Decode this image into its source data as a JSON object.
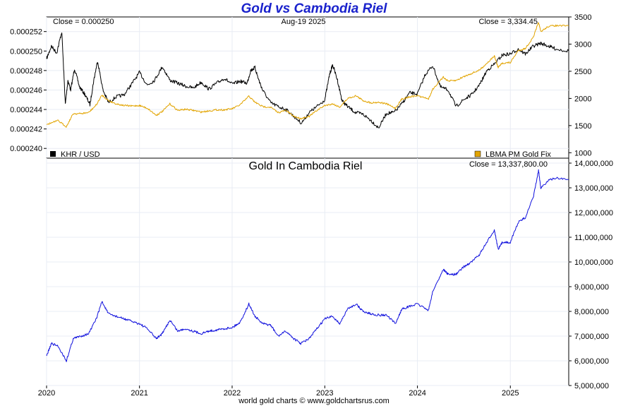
{
  "title": "Gold vs Cambodia Riel",
  "footer": "world gold charts © www.goldchartsrus.com",
  "colors": {
    "title": "#1a22cc",
    "khr": "#000000",
    "gold": "#e2a400",
    "gold_in_khr": "#1010dd",
    "grid": "#e8ecf4"
  },
  "x_axis": {
    "ticks": [
      "2020",
      "2021",
      "2022",
      "2023",
      "2024",
      "2025"
    ]
  },
  "chart_data": [
    {
      "type": "line",
      "title": "",
      "date_label": "Aug-19  2025",
      "xlim": [
        "2020-01-01",
        "2025-08-19"
      ],
      "left_axis": {
        "ylim": [
          0.000239,
          0.0002535
        ],
        "ticks": [
          "0.000252",
          "0.000250",
          "0.000248",
          "0.000246",
          "0.000244",
          "0.000242",
          "0.000240"
        ]
      },
      "right_axis": {
        "ylim": [
          900,
          3500
        ],
        "ticks": [
          "3500",
          "3000",
          "2500",
          "2000",
          "1500",
          "1000"
        ]
      },
      "close_left": "Close = 0.000250",
      "close_right": "Close = 3,334.45",
      "grid": true,
      "legend": {
        "placement": "bottom",
        "left_label": "KHR / USD",
        "right_label": "LBMA PM Gold Fix"
      },
      "series": [
        {
          "name": "KHR / USD",
          "axis": "left",
          "color": "#000000",
          "x": [
            "2020-01-01",
            "2020-01-20",
            "2020-02-10",
            "2020-03-01",
            "2020-03-15",
            "2020-03-25",
            "2020-04-05",
            "2020-04-20",
            "2020-05-10",
            "2020-06-01",
            "2020-06-20",
            "2020-07-05",
            "2020-07-20",
            "2020-08-10",
            "2020-09-01",
            "2020-10-01",
            "2020-11-01",
            "2020-12-01",
            "2021-01-01",
            "2021-02-01",
            "2021-03-01",
            "2021-04-01",
            "2021-05-01",
            "2021-06-01",
            "2021-07-01",
            "2021-08-01",
            "2021-09-01",
            "2021-10-01",
            "2021-11-01",
            "2021-12-01",
            "2022-01-01",
            "2022-02-01",
            "2022-03-01",
            "2022-03-15",
            "2022-04-01",
            "2022-04-15",
            "2022-05-01",
            "2022-06-01",
            "2022-07-01",
            "2022-08-01",
            "2022-09-01",
            "2022-10-01",
            "2022-11-01",
            "2022-12-01",
            "2023-01-01",
            "2023-01-20",
            "2023-02-01",
            "2023-02-20",
            "2023-03-10",
            "2023-04-01",
            "2023-05-01",
            "2023-06-01",
            "2023-07-01",
            "2023-08-01",
            "2023-09-01",
            "2023-10-01",
            "2023-11-01",
            "2023-12-01",
            "2024-01-01",
            "2024-02-01",
            "2024-03-01",
            "2024-04-01",
            "2024-05-01",
            "2024-06-01",
            "2024-07-01",
            "2024-08-01",
            "2024-09-01",
            "2024-10-01",
            "2024-11-01",
            "2024-12-01",
            "2025-01-01",
            "2025-02-01",
            "2025-03-01",
            "2025-04-01",
            "2025-05-01",
            "2025-06-01",
            "2025-07-01",
            "2025-08-19"
          ],
          "values": [
            0.0002492,
            0.0002505,
            0.0002498,
            0.000252,
            0.0002445,
            0.000247,
            0.000246,
            0.0002482,
            0.0002463,
            0.0002455,
            0.0002445,
            0.000247,
            0.000249,
            0.000246,
            0.0002447,
            0.0002453,
            0.0002455,
            0.0002466,
            0.0002478,
            0.0002465,
            0.000247,
            0.0002484,
            0.000247,
            0.0002467,
            0.0002464,
            0.0002462,
            0.0002468,
            0.0002461,
            0.0002467,
            0.0002472,
            0.0002466,
            0.0002469,
            0.0002467,
            0.000248,
            0.0002483,
            0.0002471,
            0.000246,
            0.0002447,
            0.0002443,
            0.000244,
            0.0002433,
            0.0002426,
            0.0002437,
            0.0002443,
            0.000245,
            0.0002476,
            0.0002486,
            0.000247,
            0.0002449,
            0.0002443,
            0.0002437,
            0.0002435,
            0.0002429,
            0.0002421,
            0.0002436,
            0.0002437,
            0.0002446,
            0.0002457,
            0.0002456,
            0.0002476,
            0.0002485,
            0.0002463,
            0.000246,
            0.0002443,
            0.000245,
            0.0002455,
            0.0002465,
            0.000248,
            0.0002487,
            0.0002496,
            0.0002497,
            0.0002502,
            0.0002497,
            0.0002505,
            0.0002508,
            0.0002505,
            0.0002502,
            0.00025
          ]
        },
        {
          "name": "LBMA PM Gold Fix",
          "axis": "right",
          "color": "#e2a400",
          "x": [
            "2020-01-01",
            "2020-02-15",
            "2020-03-19",
            "2020-04-15",
            "2020-05-15",
            "2020-06-15",
            "2020-07-15",
            "2020-08-06",
            "2020-09-01",
            "2020-10-01",
            "2020-11-01",
            "2020-12-01",
            "2021-01-01",
            "2021-02-01",
            "2021-03-08",
            "2021-04-01",
            "2021-05-01",
            "2021-06-01",
            "2021-07-01",
            "2021-08-01",
            "2021-09-01",
            "2021-10-01",
            "2021-11-01",
            "2021-12-01",
            "2022-01-01",
            "2022-02-01",
            "2022-03-08",
            "2022-04-01",
            "2022-05-01",
            "2022-06-01",
            "2022-07-01",
            "2022-08-01",
            "2022-09-01",
            "2022-09-28",
            "2022-11-01",
            "2022-12-01",
            "2023-01-01",
            "2023-02-01",
            "2023-03-01",
            "2023-04-01",
            "2023-05-04",
            "2023-06-01",
            "2023-07-01",
            "2023-08-01",
            "2023-09-01",
            "2023-10-06",
            "2023-11-01",
            "2023-12-01",
            "2024-01-01",
            "2024-02-14",
            "2024-03-01",
            "2024-04-12",
            "2024-05-01",
            "2024-06-01",
            "2024-07-01",
            "2024-08-01",
            "2024-09-01",
            "2024-10-01",
            "2024-10-30",
            "2024-11-14",
            "2024-12-01",
            "2025-01-01",
            "2025-02-01",
            "2025-03-01",
            "2025-04-01",
            "2025-04-22",
            "2025-05-01",
            "2025-06-01",
            "2025-07-01",
            "2025-08-19"
          ],
          "values": [
            1520,
            1590,
            1480,
            1720,
            1720,
            1740,
            1880,
            2060,
            1960,
            1900,
            1870,
            1860,
            1870,
            1820,
            1690,
            1760,
            1900,
            1780,
            1800,
            1780,
            1750,
            1770,
            1790,
            1790,
            1810,
            1880,
            2040,
            1930,
            1850,
            1840,
            1740,
            1780,
            1670,
            1630,
            1670,
            1780,
            1870,
            1900,
            1840,
            2000,
            2050,
            1960,
            1920,
            1930,
            1900,
            1820,
            1990,
            2030,
            2050,
            1990,
            2170,
            2390,
            2320,
            2330,
            2400,
            2460,
            2520,
            2650,
            2780,
            2570,
            2650,
            2660,
            2880,
            2920,
            3120,
            3400,
            3230,
            3330,
            3340,
            3334
          ]
        }
      ]
    },
    {
      "type": "line",
      "title": "Gold In Cambodia Riel",
      "close": "Close = 13,337,800.00",
      "xlim": [
        "2020-01-01",
        "2025-08-19"
      ],
      "ylim": [
        5000000,
        14200000
      ],
      "y_ticks": [
        "14,000,000",
        "13,000,000",
        "12,000,000",
        "11,000,000",
        "10,000,000",
        "9,000,000",
        "8,000,000",
        "7,000,000",
        "6,000,000",
        "5,000,000"
      ],
      "grid": true,
      "series": [
        {
          "name": "",
          "color": "#1010dd",
          "x": [
            "2020-01-01",
            "2020-01-20",
            "2020-02-15",
            "2020-03-19",
            "2020-04-15",
            "2020-05-15",
            "2020-06-15",
            "2020-07-15",
            "2020-08-06",
            "2020-09-01",
            "2020-10-01",
            "2020-11-01",
            "2020-12-01",
            "2021-01-01",
            "2021-02-01",
            "2021-03-08",
            "2021-04-01",
            "2021-05-01",
            "2021-06-01",
            "2021-07-01",
            "2021-08-01",
            "2021-09-01",
            "2021-10-01",
            "2021-11-01",
            "2021-12-01",
            "2022-01-01",
            "2022-02-01",
            "2022-03-08",
            "2022-04-01",
            "2022-05-01",
            "2022-06-01",
            "2022-07-01",
            "2022-08-01",
            "2022-09-01",
            "2022-09-28",
            "2022-11-01",
            "2022-12-01",
            "2023-01-01",
            "2023-02-01",
            "2023-03-01",
            "2023-04-01",
            "2023-05-04",
            "2023-06-01",
            "2023-07-01",
            "2023-08-01",
            "2023-09-01",
            "2023-10-06",
            "2023-11-01",
            "2023-12-01",
            "2024-01-01",
            "2024-02-14",
            "2024-03-01",
            "2024-04-12",
            "2024-05-01",
            "2024-06-01",
            "2024-07-01",
            "2024-08-01",
            "2024-09-01",
            "2024-10-01",
            "2024-10-30",
            "2024-11-14",
            "2024-12-01",
            "2025-01-01",
            "2025-02-01",
            "2025-03-01",
            "2025-04-01",
            "2025-04-22",
            "2025-05-01",
            "2025-06-01",
            "2025-07-01",
            "2025-08-19"
          ],
          "values": [
            6200000,
            6700000,
            6600000,
            6000000,
            6900000,
            7000000,
            7100000,
            7700000,
            8400000,
            7900000,
            7800000,
            7700000,
            7600000,
            7500000,
            7300000,
            6900000,
            7100000,
            7650000,
            7200000,
            7300000,
            7200000,
            7100000,
            7200000,
            7250000,
            7300000,
            7350000,
            7550000,
            8300000,
            7800000,
            7500000,
            7450000,
            7000000,
            7200000,
            6900000,
            6700000,
            6900000,
            7300000,
            7700000,
            7800000,
            7500000,
            8100000,
            8300000,
            8000000,
            7900000,
            7850000,
            7850000,
            7500000,
            8100000,
            8200000,
            8300000,
            8050000,
            8800000,
            9700000,
            9500000,
            9500000,
            9800000,
            10000000,
            10300000,
            10800000,
            11300000,
            10500000,
            10800000,
            10800000,
            11600000,
            11800000,
            12600000,
            13700000,
            13000000,
            13300000,
            13400000,
            13337800
          ]
        }
      ]
    }
  ]
}
